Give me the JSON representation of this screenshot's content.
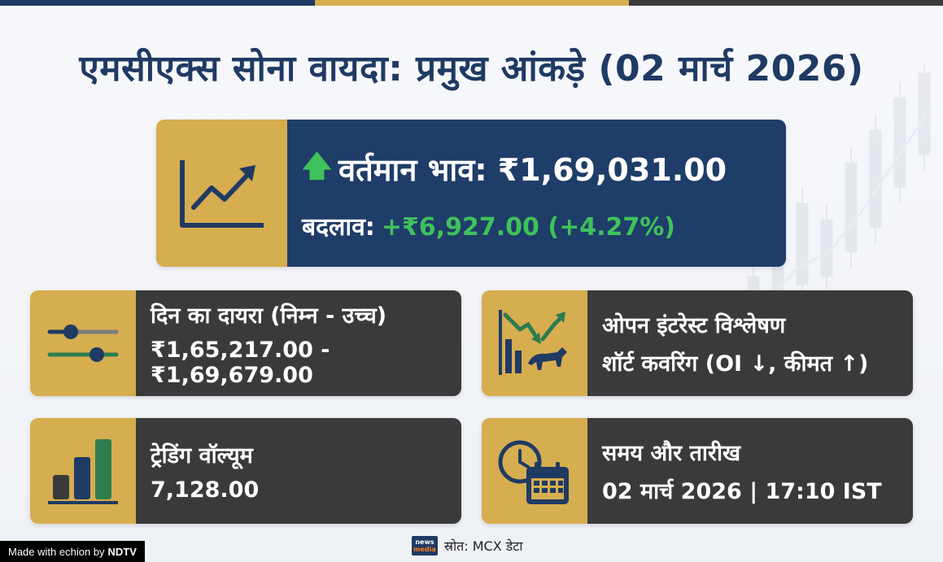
{
  "title": "एमसीएक्स सोना वायदा: प्रमुख आंकड़े (02 मार्च 2026)",
  "hero": {
    "price_label": "वर्तमान भाव: ₹1,69,031.00",
    "change_label": "बदलाव:",
    "change_value": "+₹6,927.00 (+4.27%)",
    "icon": "trend-up-chart-icon"
  },
  "cards": [
    {
      "label": "दिन का दायरा (निम्न - उच्च)",
      "value": "₹1,65,217.00 - ₹1,69,679.00",
      "icon": "range-sliders-icon"
    },
    {
      "label": "ओपन इंटरेस्ट विश्लेषण",
      "value": "शॉर्ट कवरिंग (OI ↓, कीमत ↑)",
      "icon": "bull-chart-icon"
    },
    {
      "label": "ट्रेडिंग वॉल्यूम",
      "value": "7,128.00",
      "icon": "bar-chart-icon"
    },
    {
      "label": "समय और तारीख",
      "value": "02 मार्च 2026 | 17:10 IST",
      "icon": "clock-calendar-icon"
    }
  ],
  "footer": {
    "source": "स्रोत: MCX डेटा",
    "logo_top": "news",
    "logo_bottom": "media",
    "badge_prefix": "Made with echion by",
    "badge_brand": "NDTV"
  },
  "colors": {
    "navy": "#1f3d69",
    "gold": "#d6ad4f",
    "dark": "#3a3a3a",
    "positive": "#3fc25b"
  }
}
